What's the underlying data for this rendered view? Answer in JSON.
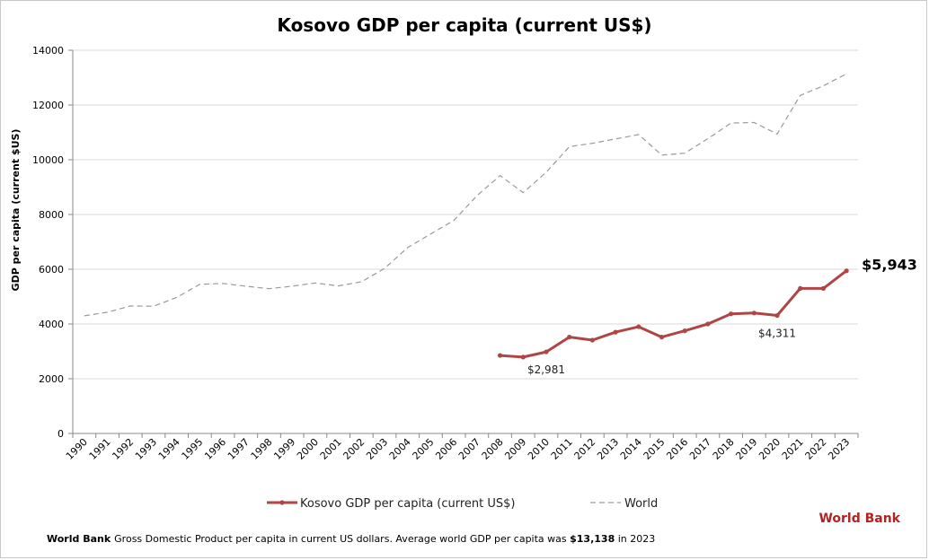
{
  "chart_data": {
    "type": "line",
    "title": "Kosovo GDP per capita (current US$)",
    "xlabel": "",
    "ylabel": "GDP per capita (current $US)",
    "ylim": [
      0,
      14000
    ],
    "yticks": [
      "0",
      "2000",
      "4000",
      "6000",
      "8000",
      "10000",
      "12000",
      "14000"
    ],
    "x": [
      "1990",
      "1991",
      "1992",
      "1993",
      "1994",
      "1995",
      "1996",
      "1997",
      "1998",
      "1999",
      "2000",
      "2001",
      "2002",
      "2003",
      "2004",
      "2005",
      "2006",
      "2007",
      "2008",
      "2009",
      "2010",
      "2011",
      "2012",
      "2013",
      "2014",
      "2015",
      "2016",
      "2017",
      "2018",
      "2019",
      "2020",
      "2021",
      "2022",
      "2023"
    ],
    "grid": true,
    "legend_placement": "bottom",
    "series": [
      {
        "name": "Kosovo GDP per capita (current US$)",
        "color": "#b04545",
        "style": "solid-markers",
        "values": [
          null,
          null,
          null,
          null,
          null,
          null,
          null,
          null,
          null,
          null,
          null,
          null,
          null,
          null,
          null,
          null,
          null,
          null,
          2850,
          2790,
          2981,
          3520,
          3410,
          3700,
          3900,
          3520,
          3750,
          4000,
          4370,
          4400,
          4311,
          5300,
          5300,
          5943
        ]
      },
      {
        "name": "World",
        "color": "#9a9a9a",
        "style": "dashed",
        "values": [
          4300,
          4430,
          4660,
          4650,
          4970,
          5450,
          5480,
          5380,
          5290,
          5380,
          5500,
          5390,
          5540,
          6030,
          6790,
          7290,
          7780,
          8690,
          9420,
          8800,
          9540,
          10480,
          10600,
          10760,
          10920,
          10170,
          10240,
          10770,
          11340,
          11360,
          10940,
          12350,
          12700,
          13138
        ]
      }
    ],
    "annotations": [
      {
        "series": 0,
        "index": 20,
        "text": "$2,981",
        "style": "normal"
      },
      {
        "series": 0,
        "index": 30,
        "text": "$4,311",
        "style": "normal"
      },
      {
        "series": 0,
        "index": 33,
        "text": "$5,943",
        "style": "big"
      }
    ]
  },
  "source_label": "World Bank",
  "source_color": "#b22222",
  "footnote": {
    "bold_source": "World Bank",
    "text_before": "Gross Domestic Product per capita in current US dollars.  Average world GDP per capita was ",
    "bold_value": "$13,138",
    "text_after": " in 2023"
  }
}
